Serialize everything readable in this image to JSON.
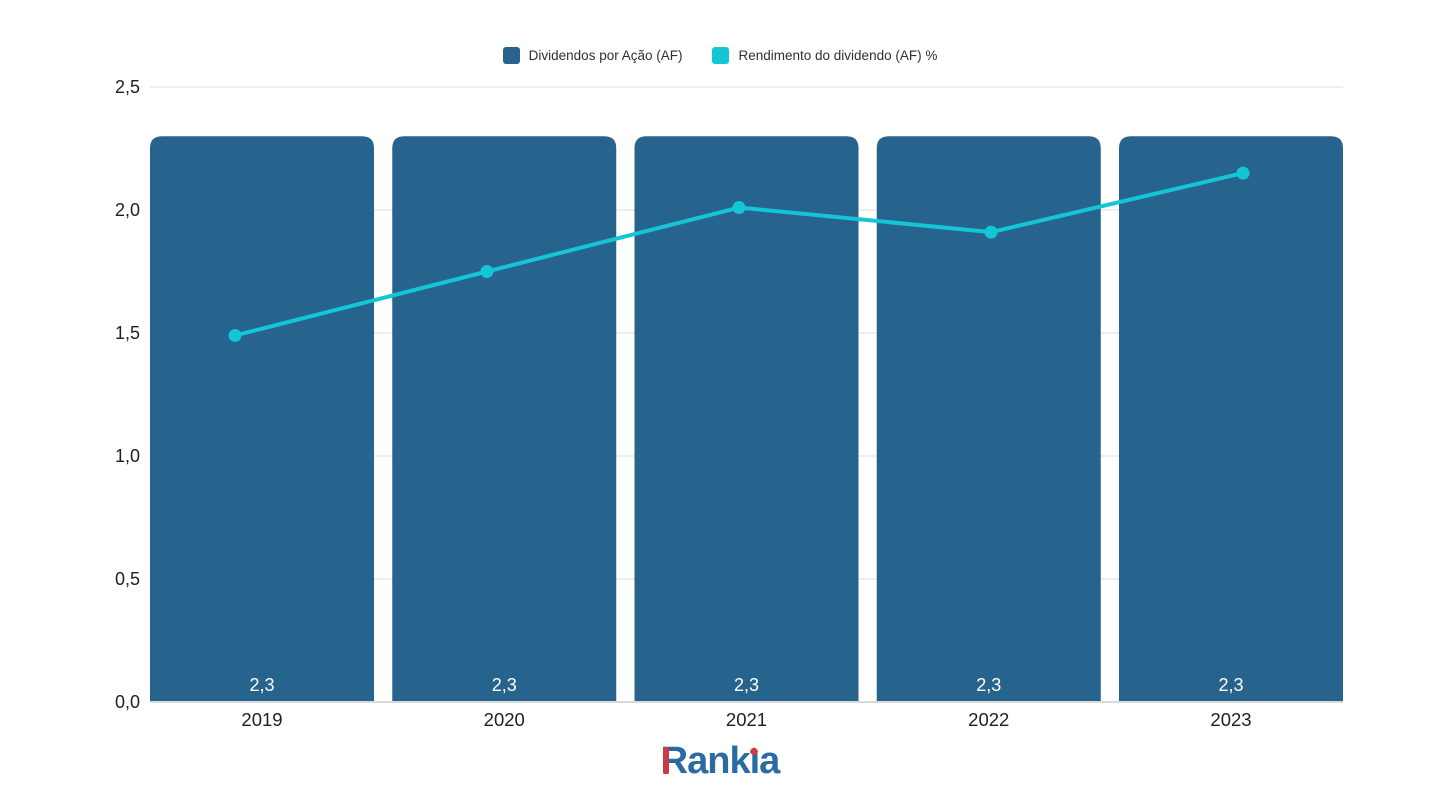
{
  "colors": {
    "background": "#ffffff",
    "bar_fill": "#26648e",
    "line_stroke": "#14c5d6",
    "grid_line": "#e8e8e8",
    "axis_baseline": "#d9d9d9",
    "axis_text": "#1f1f1f",
    "bar_label_text": "#ffffff",
    "legend_text": "#2f2f2f",
    "logo_blue": "#2b6ba3",
    "logo_red": "#cb3b45"
  },
  "legend": {
    "items": [
      {
        "label": "Dividendos por Ação (AF)",
        "color": "#26648e",
        "series": "bar"
      },
      {
        "label": "Rendimento do dividendo (AF) %",
        "color": "#14c5d6",
        "series": "line"
      }
    ]
  },
  "chart_data": {
    "type": "bar",
    "title": "",
    "xlabel": "",
    "ylabel": "",
    "categories": [
      "2019",
      "2020",
      "2021",
      "2022",
      "2023"
    ],
    "series": [
      {
        "name": "Dividendos por Ação (AF)",
        "type": "bar",
        "color": "#26648e",
        "values": [
          2.3,
          2.3,
          2.3,
          2.3,
          2.3
        ],
        "value_labels": [
          "2,3",
          "2,3",
          "2,3",
          "2,3",
          "2,3"
        ]
      },
      {
        "name": "Rendimento do dividendo (AF) %",
        "type": "line",
        "color": "#14c5d6",
        "values": [
          1.49,
          1.75,
          2.01,
          1.91,
          2.15
        ]
      }
    ],
    "ylim": [
      0,
      2.5
    ],
    "yticks": [
      {
        "value": 0.0,
        "label": "0,0"
      },
      {
        "value": 0.5,
        "label": "0,5"
      },
      {
        "value": 1.0,
        "label": "1,0"
      },
      {
        "value": 1.5,
        "label": "1,5"
      },
      {
        "value": 2.0,
        "label": "2,0"
      },
      {
        "value": 2.5,
        "label": "2,5"
      }
    ],
    "grid": true,
    "legend_position": "top"
  },
  "footer": {
    "logo": {
      "text": "Rankia",
      "part_r": "R",
      "part_mid": "ank",
      "part_i": "ı",
      "part_end": "a"
    }
  }
}
